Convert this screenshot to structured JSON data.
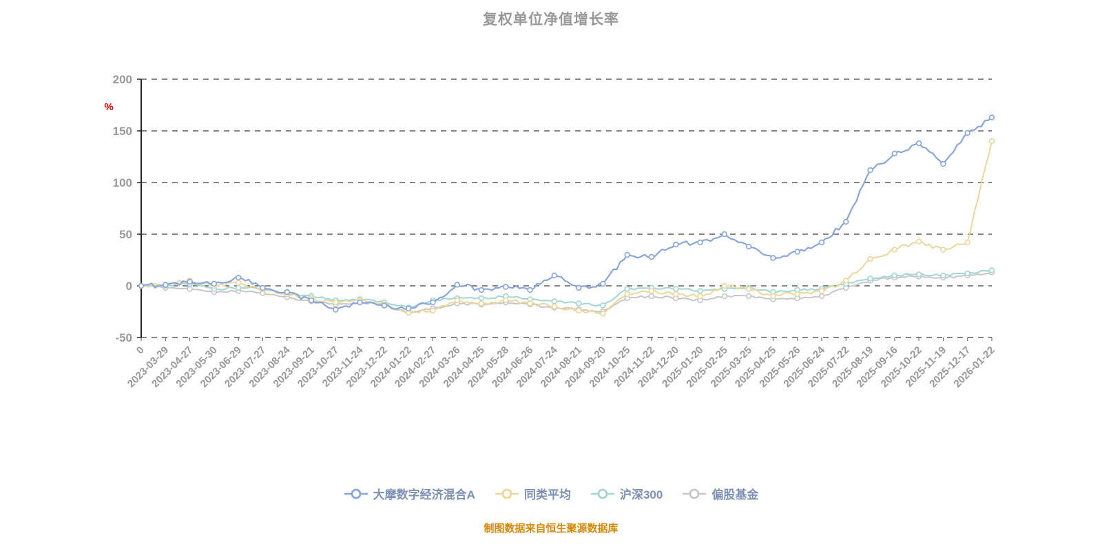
{
  "header": {
    "title": "复权单位净值增长率"
  },
  "footer": {
    "source_note": "制图数据来自恒生聚源数据库"
  },
  "colors": {
    "title_text": "#999999",
    "axis_label": "#999999",
    "grid_line": "#3a3a3a",
    "axis_line": "#222222",
    "percent_label": "#e60000",
    "legend_text": "#7d8fb3",
    "source_text": "#d48806",
    "background": "#ffffff"
  },
  "chart_data": {
    "type": "line",
    "title": "复权单位净值增长率",
    "xlabel": "",
    "ylabel": "%",
    "y_unit": "%",
    "ylim": [
      -50,
      200
    ],
    "y_ticks": [
      200,
      150,
      100,
      50,
      0,
      -50
    ],
    "grid": "dashed-horizontal",
    "legend_position": "bottom",
    "categories": [
      "0",
      "2023-03-29",
      "2023-04-27",
      "2023-05-30",
      "2023-06-29",
      "2023-07-27",
      "2023-08-24",
      "2023-09-21",
      "2023-10-27",
      "2023-11-24",
      "2023-12-22",
      "2024-01-22",
      "2024-02-27",
      "2024-03-26",
      "2024-04-25",
      "2024-05-28",
      "2024-06-26",
      "2024-07-24",
      "2024-08-21",
      "2024-09-20",
      "2024-10-25",
      "2024-11-22",
      "2024-12-20",
      "2025-01-20",
      "2025-02-25",
      "2025-03-25",
      "2025-04-25",
      "2025-05-26",
      "2025-06-24",
      "2025-07-22",
      "2025-08-19",
      "2025-09-16",
      "2025-10-22",
      "2025-11-19",
      "2025-12-17",
      "2026-01-22"
    ],
    "series": [
      {
        "name": "大摩数字经济混合A",
        "color": "#8aa6d9",
        "values": [
          0,
          1,
          4,
          2,
          8,
          -2,
          -6,
          -14,
          -23,
          -16,
          -19,
          -22,
          -16,
          1,
          -4,
          -1,
          -4,
          10,
          -2,
          2,
          30,
          28,
          40,
          42,
          50,
          38,
          27,
          33,
          42,
          62,
          112,
          128,
          138,
          118,
          148,
          163
        ]
      },
      {
        "name": "同类平均",
        "color": "#ebd69b",
        "values": [
          0,
          1,
          5,
          0,
          3,
          -3,
          -8,
          -12,
          -16,
          -14,
          -18,
          -26,
          -24,
          -14,
          -17,
          -14,
          -17,
          -20,
          -24,
          -27,
          -8,
          -5,
          -8,
          -10,
          0,
          -3,
          -10,
          -8,
          -5,
          5,
          26,
          35,
          43,
          35,
          42,
          140
        ]
      },
      {
        "name": "沪深300",
        "color": "#a3d6d2",
        "values": [
          0,
          0,
          2,
          -3,
          -2,
          -3,
          -8,
          -10,
          -14,
          -13,
          -16,
          -21,
          -14,
          -12,
          -12,
          -10,
          -13,
          -15,
          -17,
          -19,
          -3,
          -2,
          -3,
          -5,
          -3,
          -2,
          -6,
          -4,
          -3,
          2,
          7,
          10,
          11,
          10,
          12,
          15
        ]
      },
      {
        "name": "偏股基金",
        "color": "#c6c6c6",
        "values": [
          0,
          -2,
          -3,
          -6,
          -5,
          -7,
          -11,
          -15,
          -18,
          -16,
          -19,
          -26,
          -22,
          -17,
          -18,
          -16,
          -18,
          -21,
          -23,
          -25,
          -12,
          -10,
          -12,
          -14,
          -10,
          -10,
          -13,
          -12,
          -10,
          -2,
          5,
          8,
          9,
          8,
          10,
          13
        ]
      }
    ]
  }
}
